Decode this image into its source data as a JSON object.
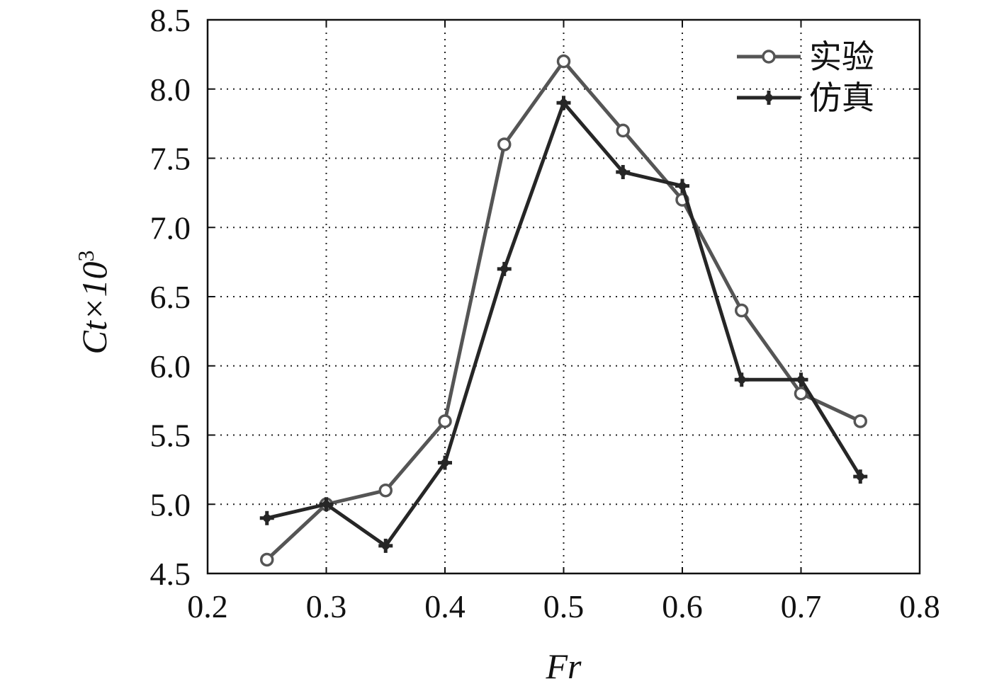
{
  "chart_data": {
    "type": "line",
    "xlabel": "Fr",
    "ylabel": {
      "base": "Ct×10",
      "sup": "3"
    },
    "xlim": [
      0.2,
      0.8
    ],
    "ylim": [
      4.5,
      8.5
    ],
    "xticks": [
      "0.2",
      "0.3",
      "0.4",
      "0.5",
      "0.6",
      "0.7",
      "0.8"
    ],
    "yticks": [
      "4.5",
      "5.0",
      "5.5",
      "6.0",
      "6.5",
      "7.0",
      "7.5",
      "8.0",
      "8.5"
    ],
    "grid": true,
    "legend_position": "top-right",
    "x": [
      0.25,
      0.3,
      0.35,
      0.4,
      0.45,
      0.5,
      0.55,
      0.6,
      0.65,
      0.7,
      0.75
    ],
    "series": [
      {
        "name": "实验",
        "marker": "circle",
        "color": "#555555",
        "values": [
          4.6,
          5.0,
          5.1,
          5.6,
          7.6,
          8.2,
          7.7,
          7.2,
          6.4,
          5.8,
          5.6
        ]
      },
      {
        "name": "仿真",
        "marker": "plus-filled",
        "color": "#262626",
        "values": [
          4.9,
          5.0,
          4.7,
          5.3,
          6.7,
          7.9,
          7.4,
          7.3,
          5.9,
          5.9,
          5.2
        ]
      }
    ]
  }
}
